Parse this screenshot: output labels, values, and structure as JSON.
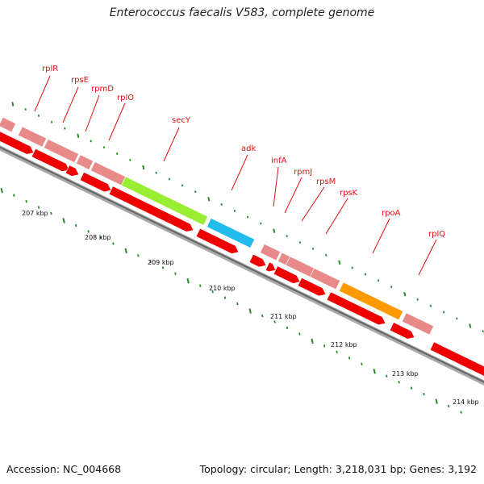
{
  "title": "Enterococcus faecalis V583, complete genome",
  "footer": {
    "accession": "Accession: NC_004668",
    "topology": "Topology: circular; Length: 3,218,031 bp; Genes: 3,192"
  },
  "colors": {
    "backbone": "#8a8a8a",
    "cds": "#ee0000",
    "ribosomal": "#e88a8a",
    "secY": "#99ee33",
    "adk": "#22bbee",
    "rpoA": "#ff9900",
    "label": "#dd1111",
    "tick": "#2a8a2a"
  },
  "scale_ticks": [
    "207 kbp",
    "208 kbp",
    "209 kbp",
    "210 kbp",
    "211 kbp",
    "212 kbp",
    "213 kbp",
    "214 kbp"
  ],
  "gene_labels": [
    "rplR",
    "rpsE",
    "rpmD",
    "rplO",
    "secY",
    "adk",
    "infA",
    "rpmJ",
    "rpsM",
    "rpsK",
    "rpoA",
    "rplQ"
  ]
}
